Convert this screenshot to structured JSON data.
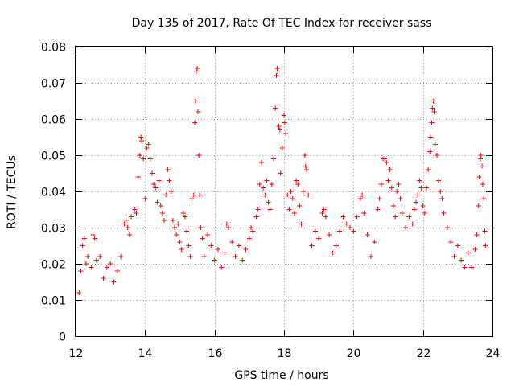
{
  "chart_data": {
    "type": "scatter",
    "title": "Day 135 of 2017, Rate Of TEC Index for receiver sass",
    "xlabel": "GPS time / hours",
    "ylabel": "ROTI / TECUs",
    "xlim": [
      12,
      24
    ],
    "ylim": [
      0,
      0.08
    ],
    "xticks": [
      12,
      14,
      16,
      18,
      20,
      22,
      24
    ],
    "xtick_labels": [
      "12",
      "14",
      "16",
      "18",
      "20",
      "22",
      "24"
    ],
    "yticks": [
      0,
      0.01,
      0.02,
      0.03,
      0.04,
      0.05,
      0.06,
      0.07,
      0.08
    ],
    "ytick_labels": [
      "0",
      "0.01",
      "0.02",
      "0.03",
      "0.04",
      "0.05",
      "0.06",
      "0.07",
      "0.08"
    ],
    "grid": true,
    "marker": "+",
    "color": "#ff0000",
    "series": [
      {
        "name": "ROTI",
        "points": [
          [
            12.1,
            0.012
          ],
          [
            12.15,
            0.018
          ],
          [
            12.2,
            0.025
          ],
          [
            12.25,
            0.027
          ],
          [
            12.3,
            0.02
          ],
          [
            12.35,
            0.022
          ],
          [
            12.45,
            0.019
          ],
          [
            12.5,
            0.028
          ],
          [
            12.55,
            0.027
          ],
          [
            12.6,
            0.021
          ],
          [
            12.7,
            0.022
          ],
          [
            12.8,
            0.016
          ],
          [
            12.9,
            0.019
          ],
          [
            13.0,
            0.02
          ],
          [
            13.1,
            0.015
          ],
          [
            13.2,
            0.018
          ],
          [
            13.3,
            0.022
          ],
          [
            13.4,
            0.031
          ],
          [
            13.45,
            0.032
          ],
          [
            13.5,
            0.03
          ],
          [
            13.55,
            0.028
          ],
          [
            13.6,
            0.033
          ],
          [
            13.7,
            0.035
          ],
          [
            13.75,
            0.034
          ],
          [
            13.8,
            0.044
          ],
          [
            13.85,
            0.05
          ],
          [
            13.88,
            0.055
          ],
          [
            13.9,
            0.054
          ],
          [
            13.95,
            0.049
          ],
          [
            14.0,
            0.038
          ],
          [
            14.05,
            0.052
          ],
          [
            14.1,
            0.053
          ],
          [
            14.15,
            0.049
          ],
          [
            14.2,
            0.045
          ],
          [
            14.25,
            0.042
          ],
          [
            14.3,
            0.041
          ],
          [
            14.35,
            0.037
          ],
          [
            14.4,
            0.043
          ],
          [
            14.45,
            0.036
          ],
          [
            14.5,
            0.034
          ],
          [
            14.55,
            0.032
          ],
          [
            14.6,
            0.039
          ],
          [
            14.65,
            0.046
          ],
          [
            14.7,
            0.043
          ],
          [
            14.75,
            0.04
          ],
          [
            14.8,
            0.032
          ],
          [
            14.85,
            0.03
          ],
          [
            14.9,
            0.028
          ],
          [
            14.95,
            0.031
          ],
          [
            15.0,
            0.026
          ],
          [
            15.05,
            0.024
          ],
          [
            15.1,
            0.034
          ],
          [
            15.15,
            0.033
          ],
          [
            15.2,
            0.029
          ],
          [
            15.25,
            0.025
          ],
          [
            15.3,
            0.022
          ],
          [
            15.35,
            0.038
          ],
          [
            15.4,
            0.039
          ],
          [
            15.43,
            0.059
          ],
          [
            15.45,
            0.065
          ],
          [
            15.47,
            0.073
          ],
          [
            15.5,
            0.074
          ],
          [
            15.52,
            0.062
          ],
          [
            15.55,
            0.05
          ],
          [
            15.57,
            0.039
          ],
          [
            15.6,
            0.03
          ],
          [
            15.65,
            0.027
          ],
          [
            15.7,
            0.022
          ],
          [
            15.8,
            0.028
          ],
          [
            15.9,
            0.025
          ],
          [
            16.0,
            0.021
          ],
          [
            16.1,
            0.024
          ],
          [
            16.2,
            0.019
          ],
          [
            16.3,
            0.023
          ],
          [
            16.35,
            0.031
          ],
          [
            16.4,
            0.03
          ],
          [
            16.5,
            0.026
          ],
          [
            16.6,
            0.022
          ],
          [
            16.7,
            0.025
          ],
          [
            16.8,
            0.021
          ],
          [
            16.9,
            0.024
          ],
          [
            17.0,
            0.027
          ],
          [
            17.05,
            0.03
          ],
          [
            17.1,
            0.029
          ],
          [
            17.2,
            0.033
          ],
          [
            17.25,
            0.035
          ],
          [
            17.3,
            0.042
          ],
          [
            17.35,
            0.048
          ],
          [
            17.4,
            0.041
          ],
          [
            17.45,
            0.039
          ],
          [
            17.5,
            0.043
          ],
          [
            17.55,
            0.037
          ],
          [
            17.6,
            0.035
          ],
          [
            17.65,
            0.042
          ],
          [
            17.7,
            0.049
          ],
          [
            17.75,
            0.063
          ],
          [
            17.78,
            0.072
          ],
          [
            17.8,
            0.074
          ],
          [
            17.82,
            0.073
          ],
          [
            17.85,
            0.058
          ],
          [
            17.88,
            0.057
          ],
          [
            17.9,
            0.045
          ],
          [
            17.95,
            0.052
          ],
          [
            18.0,
            0.061
          ],
          [
            18.02,
            0.059
          ],
          [
            18.05,
            0.056
          ],
          [
            18.1,
            0.039
          ],
          [
            18.15,
            0.035
          ],
          [
            18.2,
            0.04
          ],
          [
            18.25,
            0.038
          ],
          [
            18.3,
            0.034
          ],
          [
            18.35,
            0.043
          ],
          [
            18.4,
            0.042
          ],
          [
            18.45,
            0.036
          ],
          [
            18.5,
            0.031
          ],
          [
            18.55,
            0.04
          ],
          [
            18.6,
            0.05
          ],
          [
            18.62,
            0.047
          ],
          [
            18.65,
            0.046
          ],
          [
            18.7,
            0.039
          ],
          [
            18.8,
            0.025
          ],
          [
            18.9,
            0.029
          ],
          [
            19.0,
            0.027
          ],
          [
            19.1,
            0.034
          ],
          [
            19.15,
            0.035
          ],
          [
            19.2,
            0.033
          ],
          [
            19.3,
            0.028
          ],
          [
            19.4,
            0.023
          ],
          [
            19.5,
            0.025
          ],
          [
            19.6,
            0.029
          ],
          [
            19.7,
            0.033
          ],
          [
            19.8,
            0.031
          ],
          [
            19.9,
            0.03
          ],
          [
            20.0,
            0.029
          ],
          [
            20.1,
            0.033
          ],
          [
            20.2,
            0.038
          ],
          [
            20.25,
            0.039
          ],
          [
            20.3,
            0.034
          ],
          [
            20.4,
            0.028
          ],
          [
            20.5,
            0.022
          ],
          [
            20.6,
            0.026
          ],
          [
            20.7,
            0.035
          ],
          [
            20.75,
            0.038
          ],
          [
            20.8,
            0.042
          ],
          [
            20.85,
            0.049
          ],
          [
            20.9,
            0.049
          ],
          [
            20.95,
            0.048
          ],
          [
            21.0,
            0.043
          ],
          [
            21.05,
            0.046
          ],
          [
            21.1,
            0.041
          ],
          [
            21.15,
            0.036
          ],
          [
            21.2,
            0.033
          ],
          [
            21.25,
            0.04
          ],
          [
            21.3,
            0.042
          ],
          [
            21.35,
            0.038
          ],
          [
            21.4,
            0.034
          ],
          [
            21.5,
            0.03
          ],
          [
            21.6,
            0.033
          ],
          [
            21.7,
            0.031
          ],
          [
            21.75,
            0.035
          ],
          [
            21.8,
            0.037
          ],
          [
            21.85,
            0.039
          ],
          [
            21.9,
            0.043
          ],
          [
            21.95,
            0.041
          ],
          [
            22.0,
            0.036
          ],
          [
            22.05,
            0.034
          ],
          [
            22.1,
            0.041
          ],
          [
            22.15,
            0.046
          ],
          [
            22.2,
            0.051
          ],
          [
            22.22,
            0.055
          ],
          [
            22.25,
            0.059
          ],
          [
            22.27,
            0.063
          ],
          [
            22.3,
            0.065
          ],
          [
            22.32,
            0.062
          ],
          [
            22.35,
            0.053
          ],
          [
            22.4,
            0.05
          ],
          [
            22.45,
            0.043
          ],
          [
            22.5,
            0.04
          ],
          [
            22.55,
            0.038
          ],
          [
            22.6,
            0.034
          ],
          [
            22.7,
            0.03
          ],
          [
            22.8,
            0.026
          ],
          [
            22.9,
            0.022
          ],
          [
            23.0,
            0.025
          ],
          [
            23.1,
            0.021
          ],
          [
            23.2,
            0.019
          ],
          [
            23.3,
            0.023
          ],
          [
            23.4,
            0.019
          ],
          [
            23.5,
            0.024
          ],
          [
            23.55,
            0.028
          ],
          [
            23.6,
            0.036
          ],
          [
            23.62,
            0.044
          ],
          [
            23.65,
            0.049
          ],
          [
            23.67,
            0.05
          ],
          [
            23.7,
            0.047
          ],
          [
            23.72,
            0.042
          ],
          [
            23.75,
            0.038
          ],
          [
            23.78,
            0.029
          ],
          [
            23.8,
            0.025
          ]
        ]
      }
    ]
  }
}
